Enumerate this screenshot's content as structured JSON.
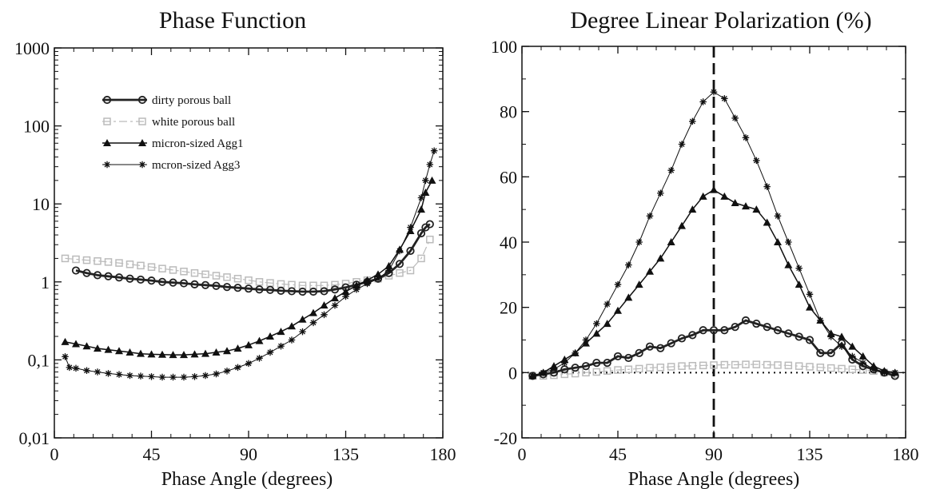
{
  "chart_data": [
    {
      "type": "line",
      "title": "Phase Function",
      "xlabel": "Phase Angle (degrees)",
      "ylabel": "",
      "xlim": [
        0,
        180
      ],
      "ylim": [
        0.01,
        1000
      ],
      "yscale": "log",
      "xticks": [
        "0",
        "45",
        "90",
        "135",
        "180"
      ],
      "yticks": [
        "0,01",
        "0,1",
        "1",
        "10",
        "100",
        "1000"
      ],
      "grid": false,
      "legend": "upper-left",
      "series": [
        {
          "name": "dirty porous ball",
          "color": "#222222",
          "marker": "circle",
          "x": [
            10,
            15,
            20,
            25,
            30,
            35,
            40,
            45,
            50,
            55,
            60,
            65,
            70,
            75,
            80,
            85,
            90,
            95,
            100,
            105,
            110,
            115,
            120,
            125,
            130,
            135,
            140,
            145,
            150,
            155,
            160,
            165,
            170,
            172,
            174
          ],
          "y": [
            1.4,
            1.3,
            1.22,
            1.18,
            1.14,
            1.1,
            1.07,
            1.04,
            1.0,
            0.98,
            0.96,
            0.93,
            0.91,
            0.89,
            0.86,
            0.84,
            0.82,
            0.8,
            0.79,
            0.77,
            0.76,
            0.75,
            0.75,
            0.76,
            0.8,
            0.85,
            0.92,
            1.0,
            1.1,
            1.3,
            1.7,
            2.5,
            4.2,
            5.0,
            5.5
          ]
        },
        {
          "name": "white porous ball",
          "color": "#bbbbbb",
          "marker": "square",
          "x": [
            5,
            10,
            15,
            20,
            25,
            30,
            35,
            40,
            45,
            50,
            55,
            60,
            65,
            70,
            75,
            80,
            85,
            90,
            95,
            100,
            105,
            110,
            115,
            120,
            125,
            130,
            135,
            140,
            145,
            150,
            155,
            160,
            165,
            170,
            174
          ],
          "y": [
            2.0,
            1.95,
            1.9,
            1.85,
            1.8,
            1.75,
            1.68,
            1.62,
            1.55,
            1.48,
            1.42,
            1.36,
            1.3,
            1.25,
            1.2,
            1.15,
            1.1,
            1.05,
            1.0,
            0.97,
            0.94,
            0.92,
            0.9,
            0.9,
            0.9,
            0.92,
            0.95,
            1.0,
            1.05,
            1.1,
            1.2,
            1.3,
            1.4,
            2.0,
            3.5
          ]
        },
        {
          "name": "micron-sized Agg1",
          "color": "#111111",
          "marker": "triangle",
          "x": [
            5,
            10,
            15,
            20,
            25,
            30,
            35,
            40,
            45,
            50,
            55,
            60,
            65,
            70,
            75,
            80,
            85,
            90,
            95,
            100,
            105,
            110,
            115,
            120,
            125,
            130,
            135,
            140,
            145,
            150,
            155,
            160,
            165,
            170,
            172,
            175
          ],
          "y": [
            0.17,
            0.16,
            0.15,
            0.14,
            0.135,
            0.13,
            0.125,
            0.12,
            0.118,
            0.117,
            0.116,
            0.116,
            0.118,
            0.12,
            0.125,
            0.13,
            0.14,
            0.155,
            0.175,
            0.2,
            0.23,
            0.27,
            0.33,
            0.4,
            0.5,
            0.62,
            0.75,
            0.9,
            1.05,
            1.25,
            1.6,
            2.6,
            4.5,
            8.5,
            14,
            20
          ]
        },
        {
          "name": "mcron-sized Agg3",
          "color": "#111111",
          "marker": "asterisk",
          "x": [
            5,
            7,
            10,
            15,
            20,
            25,
            30,
            35,
            40,
            45,
            50,
            55,
            60,
            65,
            70,
            75,
            80,
            85,
            90,
            95,
            100,
            105,
            110,
            115,
            120,
            125,
            130,
            135,
            140,
            145,
            150,
            155,
            160,
            165,
            170,
            172,
            174,
            176
          ],
          "y": [
            0.11,
            0.08,
            0.078,
            0.073,
            0.07,
            0.067,
            0.065,
            0.063,
            0.062,
            0.061,
            0.06,
            0.06,
            0.06,
            0.061,
            0.063,
            0.066,
            0.072,
            0.08,
            0.09,
            0.105,
            0.125,
            0.15,
            0.18,
            0.23,
            0.3,
            0.38,
            0.5,
            0.65,
            0.8,
            0.95,
            1.1,
            1.4,
            2.5,
            5.0,
            12,
            20,
            32,
            48
          ]
        }
      ]
    },
    {
      "type": "line",
      "title": "Degree Linear Polarization (%)",
      "xlabel": "Phase Angle (degrees)",
      "ylabel": "",
      "xlim": [
        0,
        180
      ],
      "ylim": [
        -20,
        100
      ],
      "yscale": "linear",
      "xticks": [
        "0",
        "45",
        "90",
        "135",
        "180"
      ],
      "yticks": [
        "-20",
        "0",
        "20",
        "40",
        "60",
        "80",
        "100"
      ],
      "grid": false,
      "reference_lines": [
        {
          "orientation": "vertical",
          "x": 90,
          "style": "dashed"
        },
        {
          "orientation": "horizontal",
          "y": 0,
          "style": "dotted"
        }
      ],
      "series": [
        {
          "name": "dirty porous ball",
          "color": "#222222",
          "marker": "circle",
          "x": [
            5,
            10,
            15,
            20,
            25,
            30,
            35,
            40,
            45,
            50,
            55,
            60,
            65,
            70,
            75,
            80,
            85,
            90,
            95,
            100,
            105,
            110,
            115,
            120,
            125,
            130,
            135,
            140,
            145,
            150,
            155,
            160,
            165,
            170,
            175
          ],
          "y": [
            -1,
            -0.5,
            0,
            1,
            1.5,
            2,
            3,
            3,
            5,
            4.5,
            6,
            8,
            7.5,
            9,
            10.5,
            11.5,
            13,
            13,
            13,
            14,
            16,
            15,
            14,
            13,
            12,
            11,
            10,
            6,
            6,
            9,
            4,
            2,
            1,
            0,
            -1
          ]
        },
        {
          "name": "white porous ball",
          "color": "#bbbbbb",
          "marker": "square",
          "x": [
            5,
            10,
            15,
            20,
            25,
            30,
            35,
            40,
            45,
            50,
            55,
            60,
            65,
            70,
            75,
            80,
            85,
            90,
            95,
            100,
            105,
            110,
            115,
            120,
            125,
            130,
            135,
            140,
            145,
            150,
            155,
            160,
            165,
            170,
            175
          ],
          "y": [
            -1,
            -1,
            -0.8,
            -0.5,
            -0.3,
            0,
            0.2,
            0.5,
            0.8,
            1,
            1.2,
            1.5,
            1.6,
            1.8,
            2,
            2.1,
            2.2,
            2.3,
            2.4,
            2.4,
            2.5,
            2.5,
            2.4,
            2.3,
            2.2,
            2,
            1.8,
            1.6,
            1.4,
            1.2,
            1,
            0.8,
            0.5,
            0,
            -0.5
          ]
        },
        {
          "name": "micron-sized Agg1",
          "color": "#111111",
          "marker": "triangle",
          "x": [
            5,
            10,
            15,
            20,
            25,
            30,
            35,
            40,
            45,
            50,
            55,
            60,
            65,
            70,
            75,
            80,
            85,
            90,
            95,
            100,
            105,
            110,
            115,
            120,
            125,
            130,
            135,
            140,
            145,
            150,
            155,
            160,
            165,
            170,
            175
          ],
          "y": [
            -1,
            0,
            2,
            4,
            6,
            9,
            12,
            15,
            19,
            23,
            27,
            31,
            35,
            40,
            45,
            50,
            54,
            56,
            54,
            52,
            51,
            50,
            46,
            40,
            33,
            27,
            20,
            16,
            12,
            11,
            8,
            5,
            2,
            0.5,
            0
          ]
        },
        {
          "name": "mcron-sized Agg3",
          "color": "#111111",
          "marker": "asterisk",
          "x": [
            5,
            10,
            15,
            20,
            25,
            30,
            35,
            40,
            45,
            50,
            55,
            60,
            65,
            70,
            75,
            80,
            85,
            90,
            95,
            100,
            105,
            110,
            115,
            120,
            125,
            130,
            135,
            140,
            145,
            150,
            155,
            160,
            165,
            170,
            175
          ],
          "y": [
            -1,
            0,
            1,
            3,
            6,
            10,
            15,
            21,
            27,
            33,
            40,
            48,
            55,
            62,
            70,
            77,
            83,
            86,
            84,
            78,
            72,
            65,
            57,
            48,
            40,
            32,
            24,
            16,
            11,
            8,
            5,
            3,
            1,
            0,
            0
          ]
        }
      ]
    }
  ]
}
